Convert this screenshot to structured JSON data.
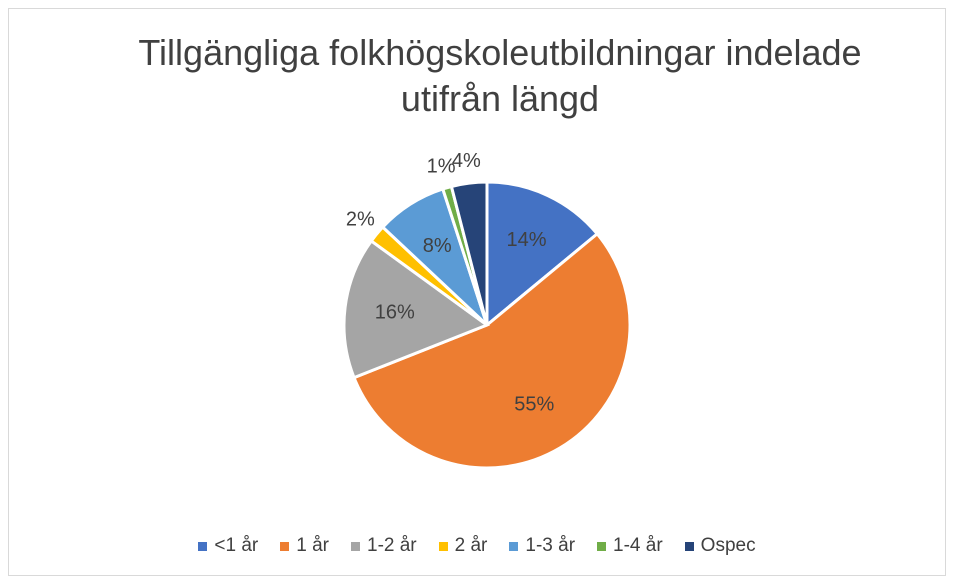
{
  "chart_data": {
    "type": "pie",
    "title": "Tillgängliga folkhögskoleutbildningar indelade utifrån längd",
    "categories": [
      "<1 år",
      "1 år",
      "1-2 år",
      "2 år",
      "1-3 år",
      "1-4 år",
      "Ospec"
    ],
    "values": [
      14,
      55,
      16,
      2,
      8,
      1,
      4
    ],
    "value_labels": [
      "14%",
      "55%",
      "16%",
      "2%",
      "8%",
      "1%",
      "4%"
    ],
    "colors": [
      "#4472c4",
      "#ed7d31",
      "#a5a5a5",
      "#ffc000",
      "#5b9bd5",
      "#70ad47",
      "#264478"
    ],
    "legend": "bottom"
  }
}
